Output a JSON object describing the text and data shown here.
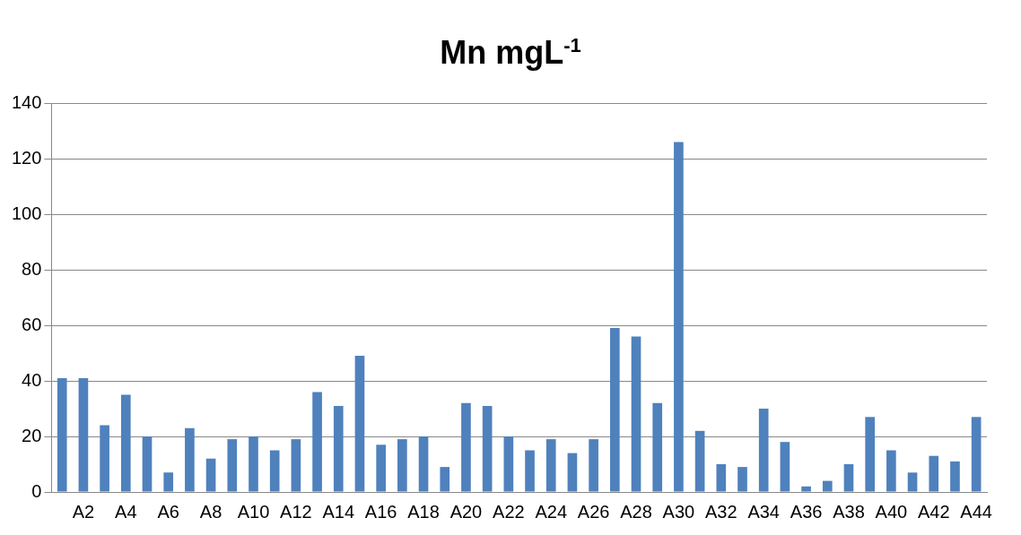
{
  "chart_data": {
    "type": "bar",
    "title": "Mn mgL$^{-1}$",
    "categories": [
      null,
      "A2",
      null,
      "A4",
      null,
      "A6",
      null,
      "A8",
      null,
      "A10",
      null,
      "A12",
      null,
      "A14",
      null,
      "A16",
      null,
      "A18",
      null,
      "A20",
      null,
      "A22",
      null,
      "A24",
      null,
      "A26",
      null,
      "A28",
      null,
      "A30",
      null,
      "A32",
      null,
      "A34",
      null,
      "A36",
      null,
      "A38",
      null,
      "A40",
      null,
      "A42",
      null,
      "A44"
    ],
    "values": [
      41,
      41,
      24,
      35,
      20,
      7,
      23,
      12,
      19,
      20,
      15,
      19,
      36,
      31,
      49,
      17,
      19,
      20,
      9,
      32,
      31,
      20,
      15,
      19,
      14,
      19,
      59,
      56,
      32,
      126,
      22,
      10,
      9,
      30,
      18,
      2,
      4,
      10,
      27,
      15,
      7,
      13,
      11,
      27
    ],
    "color": "#4f81bd",
    "ylim": [
      0,
      140
    ],
    "yticks": [
      0,
      20,
      40,
      60,
      80,
      100,
      120,
      140
    ],
    "grid": "y",
    "legend": false
  }
}
